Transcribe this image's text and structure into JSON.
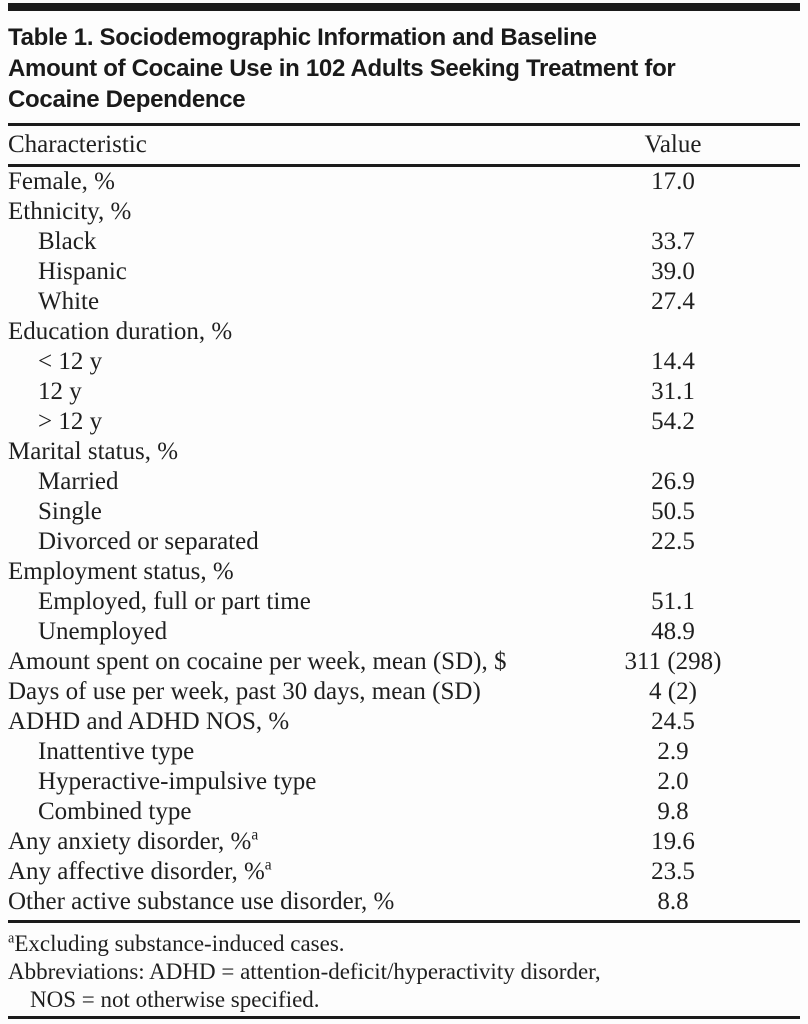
{
  "title_lines": [
    "Table 1. Sociodemographic Information and Baseline",
    "Amount of Cocaine Use in 102 Adults Seeking Treatment for",
    "Cocaine Dependence"
  ],
  "columns": {
    "characteristic": "Characteristic",
    "value": "Value"
  },
  "rows": [
    {
      "label": "Female, %",
      "value": "17.0",
      "indent": false,
      "sup": ""
    },
    {
      "label": "Ethnicity, %",
      "value": "",
      "indent": false,
      "sup": ""
    },
    {
      "label": "Black",
      "value": "33.7",
      "indent": true,
      "sup": ""
    },
    {
      "label": "Hispanic",
      "value": "39.0",
      "indent": true,
      "sup": ""
    },
    {
      "label": "White",
      "value": "27.4",
      "indent": true,
      "sup": ""
    },
    {
      "label": "Education duration, %",
      "value": "",
      "indent": false,
      "sup": ""
    },
    {
      "label": "< 12 y",
      "value": "14.4",
      "indent": true,
      "sup": ""
    },
    {
      "label": "12 y",
      "value": "31.1",
      "indent": true,
      "sup": ""
    },
    {
      "label": "> 12 y",
      "value": "54.2",
      "indent": true,
      "sup": ""
    },
    {
      "label": "Marital status, %",
      "value": "",
      "indent": false,
      "sup": ""
    },
    {
      "label": "Married",
      "value": "26.9",
      "indent": true,
      "sup": ""
    },
    {
      "label": "Single",
      "value": "50.5",
      "indent": true,
      "sup": ""
    },
    {
      "label": "Divorced or separated",
      "value": "22.5",
      "indent": true,
      "sup": ""
    },
    {
      "label": "Employment status, %",
      "value": "",
      "indent": false,
      "sup": ""
    },
    {
      "label": "Employed, full or part time",
      "value": "51.1",
      "indent": true,
      "sup": ""
    },
    {
      "label": "Unemployed",
      "value": "48.9",
      "indent": true,
      "sup": ""
    },
    {
      "label": "Amount spent on cocaine per week, mean (SD), $",
      "value": "311 (298)",
      "indent": false,
      "sup": ""
    },
    {
      "label": "Days of use per week, past 30 days, mean (SD)",
      "value": "4 (2)",
      "indent": false,
      "sup": ""
    },
    {
      "label": "ADHD and ADHD NOS, %",
      "value": "24.5",
      "indent": false,
      "sup": ""
    },
    {
      "label": "Inattentive type",
      "value": "2.9",
      "indent": true,
      "sup": ""
    },
    {
      "label": "Hyperactive-impulsive type",
      "value": "2.0",
      "indent": true,
      "sup": ""
    },
    {
      "label": "Combined type",
      "value": "9.8",
      "indent": true,
      "sup": ""
    },
    {
      "label": "Any anxiety disorder, %",
      "value": "19.6",
      "indent": false,
      "sup": "a"
    },
    {
      "label": "Any affective disorder, %",
      "value": "23.5",
      "indent": false,
      "sup": "a"
    },
    {
      "label": "Other active substance use disorder, %",
      "value": "8.8",
      "indent": false,
      "sup": ""
    }
  ],
  "footnotes": {
    "note_a_sup": "a",
    "note_a_text": "Excluding substance-induced cases.",
    "abbrev_line1": "Abbreviations: ADHD = attention-deficit/hyperactivity disorder,",
    "abbrev_line2": "NOS = not otherwise specified."
  },
  "colors": {
    "rule": "#1b1b1b",
    "text": "#1f1f1f",
    "background": "#fdfdfd"
  }
}
